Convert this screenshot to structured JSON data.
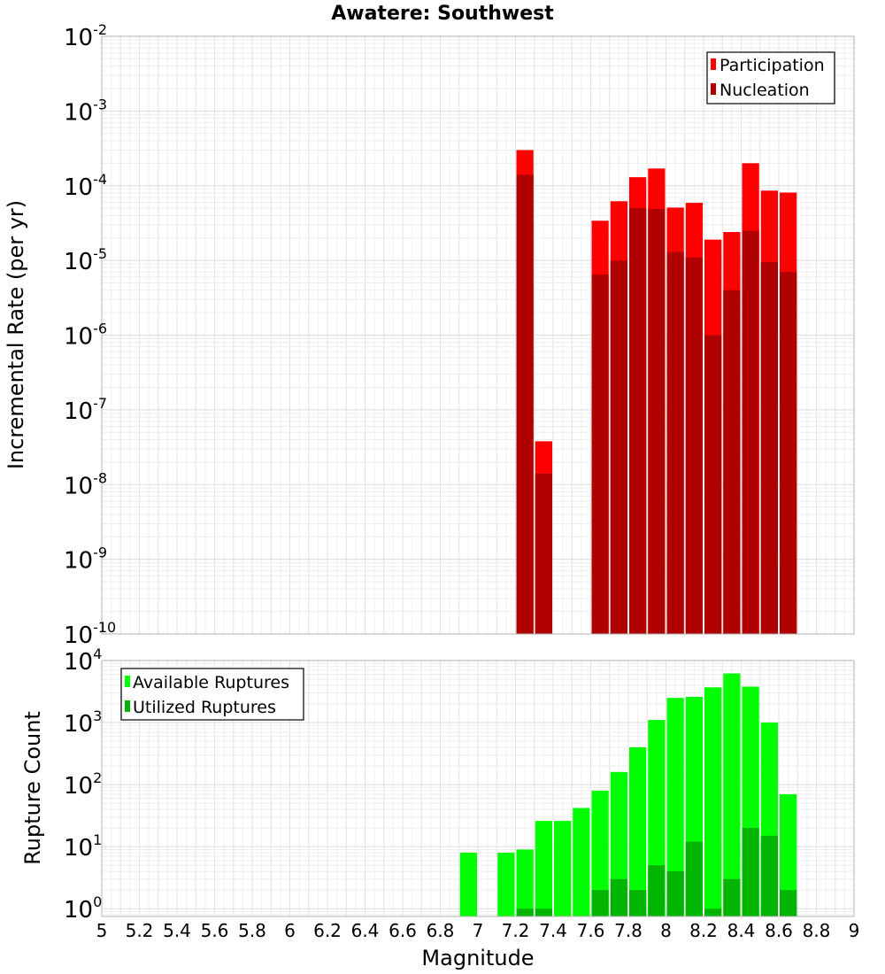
{
  "chart_data": [
    {
      "type": "bar",
      "title": "Awatere: Southwest",
      "xlabel": "",
      "ylabel": "Incremental Rate (per yr)",
      "xlim": [
        5,
        9
      ],
      "ylim": [
        1e-10,
        0.01
      ],
      "yscale": "log",
      "grid": true,
      "legend_position": "top-right",
      "series": [
        {
          "name": "Participation",
          "color": "#ff0000",
          "points": [
            [
              7.25,
              0.0003
            ],
            [
              7.35,
              3.8e-08
            ],
            [
              7.65,
              3.4e-05
            ],
            [
              7.75,
              6.2e-05
            ],
            [
              7.85,
              0.00013
            ],
            [
              7.95,
              0.00017
            ],
            [
              8.05,
              5.1e-05
            ],
            [
              8.15,
              5.9e-05
            ],
            [
              8.25,
              1.9e-05
            ],
            [
              8.35,
              2.4e-05
            ],
            [
              8.45,
              0.0002
            ],
            [
              8.55,
              8.6e-05
            ],
            [
              8.65,
              8.1e-05
            ]
          ]
        },
        {
          "name": "Nucleation",
          "color": "#b00000",
          "points": [
            [
              7.25,
              0.00014
            ],
            [
              7.35,
              1.4e-08
            ],
            [
              7.65,
              6.5e-06
            ],
            [
              7.75,
              1e-05
            ],
            [
              7.85,
              5e-05
            ],
            [
              7.95,
              4.9e-05
            ],
            [
              8.05,
              1.3e-05
            ],
            [
              8.15,
              1.1e-05
            ],
            [
              8.25,
              1e-06
            ],
            [
              8.35,
              4e-06
            ],
            [
              8.45,
              2.5e-05
            ],
            [
              8.55,
              9.5e-06
            ],
            [
              8.65,
              7e-06
            ]
          ]
        }
      ]
    },
    {
      "type": "bar",
      "title": "",
      "xlabel": "Magnitude",
      "ylabel": "Rupture Count",
      "xlim": [
        5,
        9
      ],
      "ylim": [
        0.75,
        10000
      ],
      "yscale": "log",
      "grid": true,
      "legend_position": "top-left",
      "x_ticks": [
        "5",
        "5.2",
        "5.4",
        "5.6",
        "5.8",
        "6",
        "6.2",
        "6.4",
        "6.6",
        "6.8",
        "7",
        "7.2",
        "7.4",
        "7.6",
        "7.8",
        "8",
        "8.2",
        "8.4",
        "8.6",
        "8.8",
        "9"
      ],
      "series": [
        {
          "name": "Available Ruptures",
          "color": "#00ff00",
          "points": [
            [
              6.95,
              8
            ],
            [
              7.15,
              8
            ],
            [
              7.25,
              9
            ],
            [
              7.35,
              26
            ],
            [
              7.45,
              26
            ],
            [
              7.55,
              42
            ],
            [
              7.65,
              80
            ],
            [
              7.75,
              160
            ],
            [
              7.85,
              400
            ],
            [
              7.95,
              1100
            ],
            [
              8.05,
              2500
            ],
            [
              8.15,
              2600
            ],
            [
              8.25,
              3700
            ],
            [
              8.35,
              6200
            ],
            [
              8.45,
              3800
            ],
            [
              8.55,
              1000
            ],
            [
              8.65,
              70
            ]
          ]
        },
        {
          "name": "Utilized Ruptures",
          "color": "#00b400",
          "points": [
            [
              7.25,
              1
            ],
            [
              7.35,
              1
            ],
            [
              7.65,
              2
            ],
            [
              7.75,
              3
            ],
            [
              7.85,
              2
            ],
            [
              7.95,
              5
            ],
            [
              8.05,
              4
            ],
            [
              8.15,
              12
            ],
            [
              8.25,
              1
            ],
            [
              8.35,
              3
            ],
            [
              8.45,
              20
            ],
            [
              8.55,
              15
            ],
            [
              8.65,
              2
            ]
          ]
        }
      ]
    }
  ],
  "y_tick_labels": [
    [
      {
        "base": "10",
        "exp": "-10"
      },
      {
        "base": "10",
        "exp": "-9"
      },
      {
        "base": "10",
        "exp": "-8"
      },
      {
        "base": "10",
        "exp": "-7"
      },
      {
        "base": "10",
        "exp": "-6"
      },
      {
        "base": "10",
        "exp": "-5"
      },
      {
        "base": "10",
        "exp": "-4"
      },
      {
        "base": "10",
        "exp": "-3"
      },
      {
        "base": "10",
        "exp": "-2"
      }
    ],
    [
      {
        "base": "10",
        "exp": "0"
      },
      {
        "base": "10",
        "exp": "1"
      },
      {
        "base": "10",
        "exp": "2"
      },
      {
        "base": "10",
        "exp": "3"
      },
      {
        "base": "10",
        "exp": "4"
      }
    ]
  ]
}
